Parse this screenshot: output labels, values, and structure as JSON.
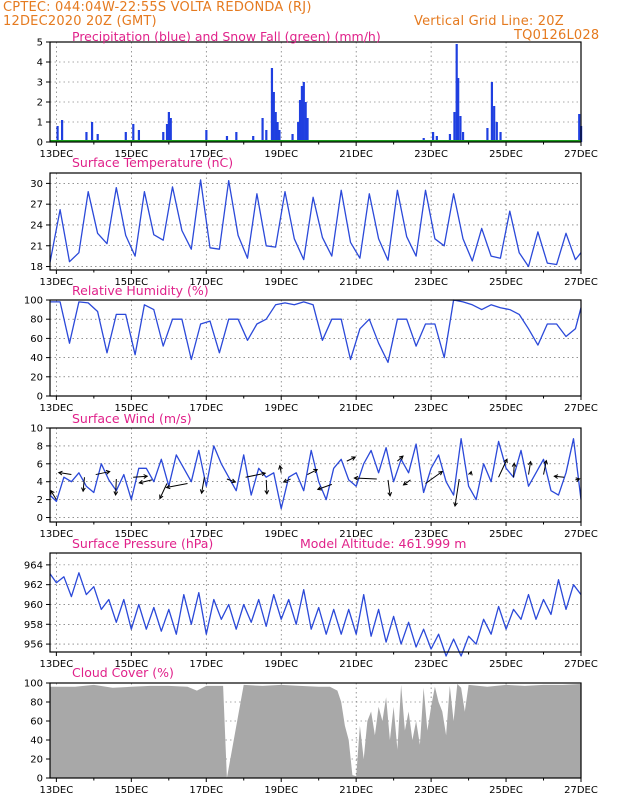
{
  "header": {
    "left_line1": "CPTEC:   044:04W-22:55S   VOLTA REDONDA (RJ)",
    "left_line2": "12DEC2020 20Z (GMT)",
    "right_line1": "Vertical Grid Line: 20Z",
    "right_line2": "TQ0126L028"
  },
  "x_ticks": [
    "13DEC",
    "15DEC",
    "17DEC",
    "19DEC",
    "21DEC",
    "23DEC",
    "25DEC",
    "27DEC"
  ],
  "colors": {
    "title": "#e0218a",
    "header": "#e57a1f",
    "precip": "#1f3fe0",
    "snow": "#1a9e1a",
    "line": "#2b49d9",
    "cloud": "#a8a8a8",
    "wind_arrow": "#000000"
  },
  "chart_data": [
    {
      "id": "precip",
      "type": "bar",
      "title": "Precipitation (blue) and Snow Fall (green) (mm/h)",
      "ylim": [
        0,
        5
      ],
      "yticks": [
        "0",
        "1",
        "2",
        "3",
        "4",
        "5"
      ],
      "x_range_days": [
        12.83,
        27.0
      ],
      "series": [
        {
          "name": "Precipitation",
          "points": [
            [
              13.03,
              0.8
            ],
            [
              13.15,
              1.1
            ],
            [
              13.8,
              0.5
            ],
            [
              13.95,
              1.0
            ],
            [
              14.1,
              0.4
            ],
            [
              14.85,
              0.5
            ],
            [
              15.05,
              0.9
            ],
            [
              15.2,
              0.6
            ],
            [
              15.85,
              0.5
            ],
            [
              15.95,
              0.9
            ],
            [
              16.0,
              1.5
            ],
            [
              16.05,
              1.2
            ],
            [
              17.0,
              0.6
            ],
            [
              17.55,
              0.3
            ],
            [
              17.8,
              0.5
            ],
            [
              18.25,
              0.3
            ],
            [
              18.5,
              1.2
            ],
            [
              18.6,
              0.6
            ],
            [
              18.75,
              3.7
            ],
            [
              18.8,
              2.5
            ],
            [
              18.85,
              1.5
            ],
            [
              18.9,
              1.0
            ],
            [
              18.95,
              0.6
            ],
            [
              19.3,
              0.4
            ],
            [
              19.45,
              1.0
            ],
            [
              19.5,
              2.1
            ],
            [
              19.55,
              2.8
            ],
            [
              19.6,
              3.0
            ],
            [
              19.65,
              2.0
            ],
            [
              19.7,
              1.2
            ],
            [
              20.25,
              0.1
            ],
            [
              21.5,
              0.1
            ],
            [
              22.8,
              0.2
            ],
            [
              23.05,
              0.5
            ],
            [
              23.15,
              0.3
            ],
            [
              23.5,
              0.4
            ],
            [
              23.62,
              1.5
            ],
            [
              23.68,
              4.9
            ],
            [
              23.72,
              3.2
            ],
            [
              23.78,
              1.3
            ],
            [
              23.85,
              0.5
            ],
            [
              24.5,
              0.7
            ],
            [
              24.62,
              3.0
            ],
            [
              24.68,
              1.8
            ],
            [
              24.75,
              1.0
            ],
            [
              24.85,
              0.5
            ],
            [
              26.95,
              1.4
            ],
            [
              27.0,
              0.8
            ]
          ]
        },
        {
          "name": "Snow Fall",
          "points": []
        }
      ]
    },
    {
      "id": "temperature",
      "type": "line",
      "title": "Surface Temperature (nC)",
      "ylim": [
        17.5,
        31.5
      ],
      "yticks": [
        "18",
        "21",
        "24",
        "27",
        "30"
      ],
      "x_range_days": [
        12.83,
        27.0
      ],
      "x": [
        12.83,
        13.1,
        13.35,
        13.6,
        13.85,
        14.1,
        14.35,
        14.6,
        14.85,
        15.1,
        15.35,
        15.6,
        15.85,
        16.1,
        16.35,
        16.6,
        16.85,
        17.1,
        17.35,
        17.6,
        17.85,
        18.1,
        18.35,
        18.6,
        18.85,
        19.1,
        19.35,
        19.6,
        19.85,
        20.1,
        20.35,
        20.6,
        20.85,
        21.1,
        21.35,
        21.6,
        21.85,
        22.1,
        22.35,
        22.6,
        22.85,
        23.1,
        23.35,
        23.6,
        23.85,
        24.1,
        24.35,
        24.6,
        24.85,
        25.1,
        25.35,
        25.6,
        25.85,
        26.1,
        26.35,
        26.6,
        26.85,
        27.0
      ],
      "values": [
        18.6,
        26.2,
        18.7,
        20.0,
        28.8,
        22.8,
        21.3,
        29.4,
        22.5,
        19.5,
        28.8,
        22.6,
        21.8,
        29.5,
        23.2,
        20.5,
        30.5,
        20.7,
        20.5,
        30.4,
        22.5,
        19.2,
        28.5,
        21.0,
        20.8,
        28.8,
        22.0,
        19.0,
        28.0,
        22.2,
        19.5,
        29.0,
        21.5,
        19.2,
        28.5,
        22.0,
        18.9,
        29.0,
        22.3,
        19.5,
        29.0,
        22.0,
        21.0,
        28.5,
        22.0,
        18.8,
        23.5,
        19.5,
        19.2,
        26.0,
        20.0,
        18.0,
        23.0,
        18.5,
        18.3,
        22.8,
        19.0,
        20.0
      ]
    },
    {
      "id": "humidity",
      "type": "line",
      "title": "Relative Humidity (%)",
      "ylim": [
        0,
        100
      ],
      "yticks": [
        "0",
        "20",
        "40",
        "60",
        "80",
        "100"
      ],
      "x_range_days": [
        12.83,
        27.0
      ],
      "x": [
        12.83,
        13.1,
        13.35,
        13.6,
        13.85,
        14.1,
        14.35,
        14.6,
        14.85,
        15.1,
        15.35,
        15.6,
        15.85,
        16.1,
        16.35,
        16.6,
        16.85,
        17.1,
        17.35,
        17.6,
        17.85,
        18.1,
        18.35,
        18.6,
        18.85,
        19.1,
        19.35,
        19.6,
        19.85,
        20.1,
        20.35,
        20.6,
        20.85,
        21.1,
        21.35,
        21.6,
        21.85,
        22.1,
        22.35,
        22.6,
        22.85,
        23.1,
        23.35,
        23.6,
        23.85,
        24.1,
        24.35,
        24.6,
        24.85,
        25.1,
        25.35,
        25.6,
        25.85,
        26.1,
        26.35,
        26.6,
        26.85,
        27.0
      ],
      "values": [
        98,
        98,
        55,
        98,
        97,
        88,
        45,
        85,
        85,
        43,
        95,
        90,
        52,
        80,
        80,
        38,
        75,
        78,
        45,
        80,
        80,
        58,
        75,
        80,
        95,
        97,
        95,
        98,
        95,
        58,
        80,
        80,
        38,
        70,
        80,
        55,
        35,
        80,
        80,
        52,
        75,
        75,
        40,
        100,
        98,
        95,
        90,
        95,
        92,
        90,
        85,
        70,
        53,
        75,
        75,
        62,
        70,
        92
      ]
    },
    {
      "id": "wind",
      "type": "line",
      "title": "Surface Wind (m/s)",
      "ylim": [
        -0.5,
        10
      ],
      "yticks": [
        "0",
        "2",
        "4",
        "6",
        "8",
        "10"
      ],
      "x_range_days": [
        12.83,
        27.0
      ],
      "x": [
        12.83,
        13.0,
        13.2,
        13.4,
        13.6,
        13.8,
        14.0,
        14.2,
        14.4,
        14.6,
        14.8,
        15.0,
        15.2,
        15.4,
        15.6,
        15.8,
        16.0,
        16.2,
        16.4,
        16.6,
        16.8,
        17.0,
        17.2,
        17.4,
        17.6,
        17.8,
        18.0,
        18.2,
        18.4,
        18.6,
        18.8,
        19.0,
        19.2,
        19.4,
        19.6,
        19.8,
        20.0,
        20.2,
        20.4,
        20.6,
        20.8,
        21.0,
        21.2,
        21.4,
        21.6,
        21.8,
        22.0,
        22.2,
        22.4,
        22.6,
        22.8,
        23.0,
        23.2,
        23.4,
        23.6,
        23.8,
        24.0,
        24.2,
        24.4,
        24.6,
        24.8,
        25.0,
        25.2,
        25.4,
        25.6,
        25.8,
        26.0,
        26.2,
        26.4,
        26.6,
        26.8,
        27.0
      ],
      "values": [
        2.5,
        1.8,
        4.5,
        4.0,
        5.0,
        3.5,
        2.8,
        6.0,
        4.2,
        3.0,
        4.8,
        2.0,
        5.5,
        5.5,
        4.0,
        6.5,
        3.5,
        7.0,
        5.5,
        4.0,
        7.5,
        3.5,
        8.0,
        6.0,
        4.5,
        3.0,
        7.0,
        2.5,
        5.5,
        4.5,
        5.0,
        1.0,
        4.5,
        5.0,
        3.0,
        7.5,
        4.0,
        2.0,
        5.5,
        6.5,
        4.2,
        3.5,
        6.0,
        7.5,
        5.0,
        7.8,
        4.0,
        6.5,
        5.0,
        8.2,
        2.8,
        5.5,
        7.0,
        4.0,
        2.5,
        8.8,
        3.5,
        2.0,
        6.0,
        4.0,
        8.5,
        5.5,
        4.5,
        7.5,
        3.5,
        5.0,
        6.5,
        3.0,
        2.5,
        5.0,
        8.8,
        2.0
      ],
      "arrows": [
        [
          13.0,
          2.0,
          -0.4,
          0.9
        ],
        [
          13.4,
          4.8,
          -0.9,
          0.2
        ],
        [
          13.75,
          4.5,
          -0.1,
          -1.4
        ],
        [
          14.05,
          4.8,
          1.0,
          0.3
        ],
        [
          14.6,
          4.3,
          -0.05,
          -1.6
        ],
        [
          15.05,
          4.5,
          1.0,
          0.1
        ],
        [
          15.55,
          4.2,
          -0.9,
          -0.3
        ],
        [
          15.95,
          3.8,
          -0.5,
          -1.5
        ],
        [
          16.5,
          3.8,
          -1.5,
          -0.4
        ],
        [
          16.95,
          4.5,
          -0.2,
          -1.6
        ],
        [
          17.55,
          4.3,
          0.6,
          -0.3
        ],
        [
          18.05,
          4.5,
          1.4,
          0.4
        ],
        [
          18.6,
          4.2,
          0.05,
          -1.4
        ],
        [
          19.0,
          5.0,
          -0.1,
          0.7
        ],
        [
          19.25,
          4.3,
          -0.5,
          -0.3
        ],
        [
          19.7,
          4.8,
          0.7,
          0.5
        ],
        [
          20.35,
          3.7,
          -1.0,
          -0.5
        ],
        [
          20.75,
          6.3,
          0.6,
          0.4
        ],
        [
          21.55,
          4.3,
          -1.6,
          0.1
        ],
        [
          21.85,
          4.2,
          0.15,
          -1.6
        ],
        [
          22.1,
          6.3,
          0.4,
          0.5
        ],
        [
          22.45,
          4.2,
          -0.5,
          -0.5
        ],
        [
          22.85,
          3.8,
          1.2,
          1.2
        ],
        [
          23.75,
          4.3,
          -0.3,
          -2.7
        ],
        [
          24.05,
          4.8,
          0.05,
          0.3
        ],
        [
          24.8,
          4.5,
          0.6,
          1.8
        ],
        [
          25.2,
          4.5,
          0.05,
          1.4
        ],
        [
          25.6,
          4.8,
          0.15,
          1.3
        ],
        [
          26.0,
          4.8,
          0.2,
          1.4
        ],
        [
          26.55,
          4.5,
          -0.7,
          0.1
        ],
        [
          26.85,
          4.2,
          0.3,
          0.1
        ]
      ]
    },
    {
      "id": "pressure",
      "type": "line",
      "title": "Surface Pressure (hPa)",
      "annotation": "Model Altitude: 461.999 m",
      "ylim": [
        955.2,
        965.2
      ],
      "yticks": [
        "956",
        "958",
        "960",
        "962",
        "964"
      ],
      "x_range_days": [
        12.83,
        27.0
      ],
      "x": [
        12.83,
        13.0,
        13.2,
        13.4,
        13.6,
        13.8,
        14.0,
        14.2,
        14.4,
        14.6,
        14.8,
        15.0,
        15.2,
        15.4,
        15.6,
        15.8,
        16.0,
        16.2,
        16.4,
        16.6,
        16.8,
        17.0,
        17.2,
        17.4,
        17.6,
        17.8,
        18.0,
        18.2,
        18.4,
        18.6,
        18.8,
        19.0,
        19.2,
        19.4,
        19.6,
        19.8,
        20.0,
        20.2,
        20.4,
        20.6,
        20.8,
        21.0,
        21.2,
        21.4,
        21.6,
        21.8,
        22.0,
        22.2,
        22.4,
        22.6,
        22.8,
        23.0,
        23.2,
        23.4,
        23.6,
        23.8,
        24.0,
        24.2,
        24.4,
        24.6,
        24.8,
        25.0,
        25.2,
        25.4,
        25.6,
        25.8,
        26.0,
        26.2,
        26.4,
        26.6,
        26.8,
        27.0
      ],
      "values": [
        963.1,
        962.2,
        962.8,
        960.8,
        963.2,
        961.0,
        961.8,
        959.5,
        960.5,
        958.2,
        960.5,
        957.5,
        960.0,
        957.5,
        959.7,
        957.3,
        959.5,
        957.0,
        961.0,
        958.0,
        961.2,
        957.0,
        960.5,
        958.5,
        960.0,
        957.5,
        960.0,
        958.2,
        960.5,
        957.8,
        961.0,
        958.5,
        960.5,
        958.0,
        961.5,
        957.5,
        959.7,
        957.0,
        959.5,
        957.0,
        959.5,
        957.0,
        961.0,
        956.8,
        959.5,
        956.2,
        958.8,
        956.0,
        958.2,
        955.7,
        957.5,
        955.5,
        957.0,
        954.8,
        956.5,
        954.8,
        956.8,
        956.0,
        958.5,
        957.0,
        959.8,
        957.5,
        959.5,
        958.5,
        961.0,
        958.5,
        960.5,
        959.0,
        962.5,
        959.5,
        962.0,
        961.0
      ]
    },
    {
      "id": "cloud",
      "type": "area",
      "title": "Cloud Cover (%)",
      "ylim": [
        0,
        100
      ],
      "yticks": [
        "0",
        "20",
        "40",
        "60",
        "80",
        "100"
      ],
      "x_range_days": [
        12.83,
        27.0
      ],
      "x": [
        12.83,
        13.5,
        14.0,
        14.5,
        15.0,
        15.5,
        16.0,
        16.5,
        16.75,
        17.0,
        17.45,
        17.55,
        18.0,
        18.5,
        19.0,
        19.5,
        20.0,
        20.3,
        20.5,
        20.6,
        20.7,
        20.8,
        20.9,
        21.0,
        21.1,
        21.2,
        21.3,
        21.4,
        21.5,
        21.6,
        21.7,
        21.8,
        21.9,
        22.0,
        22.1,
        22.2,
        22.3,
        22.4,
        22.5,
        22.6,
        22.7,
        22.8,
        22.9,
        23.0,
        23.1,
        23.2,
        23.3,
        23.4,
        23.5,
        23.6,
        23.7,
        23.8,
        23.9,
        24.0,
        24.5,
        25.0,
        25.5,
        26.0,
        26.5,
        27.0
      ],
      "values": [
        96,
        96,
        98,
        95,
        96,
        97,
        97,
        96,
        92,
        97,
        97,
        0,
        98,
        97,
        98,
        97,
        96,
        96,
        92,
        80,
        55,
        40,
        3,
        2,
        55,
        20,
        60,
        70,
        45,
        75,
        60,
        85,
        40,
        75,
        30,
        98,
        50,
        70,
        40,
        60,
        35,
        95,
        50,
        75,
        96,
        80,
        70,
        45,
        97,
        60,
        99,
        95,
        70,
        98,
        96,
        98,
        97,
        98,
        98,
        99
      ]
    }
  ]
}
